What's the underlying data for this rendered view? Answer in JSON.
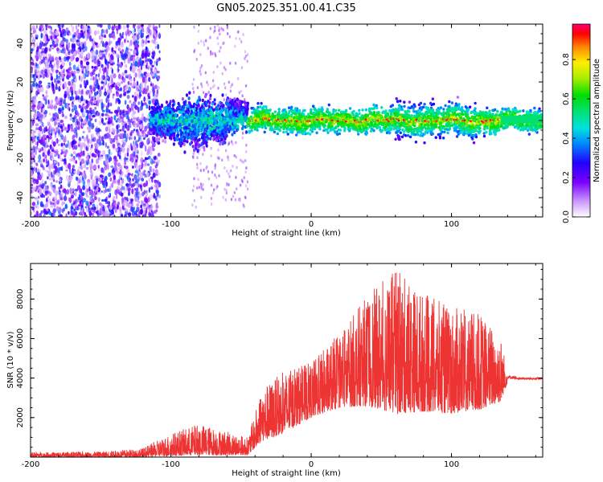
{
  "title": "GN05.2025.351.00.41.C35",
  "chart_data": [
    {
      "type": "heatmap",
      "name": "spectrogram",
      "xlabel": "Height of straight line (km)",
      "ylabel": "Frequency (Hz)",
      "xlim": [
        -200,
        165
      ],
      "ylim": [
        -50,
        50
      ],
      "xticks": [
        -200,
        -100,
        0,
        100
      ],
      "yticks": [
        -40,
        -20,
        0,
        20,
        40
      ],
      "colorbar": {
        "label": "Normalized spectral amplitude",
        "range": [
          0,
          1
        ],
        "ticks": [
          0.0,
          0.2,
          0.4,
          0.6,
          0.8
        ],
        "tick_labels": [
          "0.0",
          "0.2",
          "0.4",
          "0.6",
          "0.8"
        ]
      },
      "regions": [
        {
          "from": -200,
          "to": -108,
          "description": "broadband noise",
          "amplitude": 0.15
        },
        {
          "from": -115,
          "to": -45,
          "center_hz": 0,
          "width_hz": 12,
          "amplitude": 0.35
        },
        {
          "from": -45,
          "to": 135,
          "center_hz": 0,
          "width_hz": 6,
          "amplitude": 0.95
        },
        {
          "from": 135,
          "to": 165,
          "center_hz": 1,
          "width_hz": 5,
          "amplitude": 0.5
        }
      ]
    },
    {
      "type": "line",
      "name": "snr",
      "xlabel": "Height of straight line (km)",
      "ylabel": "SNR (10 * v/v)",
      "xlim": [
        -200,
        165
      ],
      "ylim": [
        0,
        9800
      ],
      "xticks": [
        -200,
        -100,
        0,
        100
      ],
      "yticks": [
        2000,
        4000,
        6000,
        8000
      ],
      "color": "#ee3333",
      "series": [
        {
          "name": "SNR envelope",
          "x": [
            -200,
            -150,
            -120,
            -100,
            -80,
            -60,
            -45,
            -35,
            -20,
            0,
            20,
            40,
            60,
            80,
            100,
            120,
            135,
            140,
            150,
            165
          ],
          "low": [
            0,
            0,
            0,
            50,
            100,
            100,
            100,
            800,
            1200,
            2000,
            2500,
            2600,
            2200,
            2300,
            2200,
            2400,
            2800,
            3800,
            3850,
            3850
          ],
          "high": [
            250,
            280,
            450,
            1200,
            1700,
            1300,
            1000,
            3500,
            4300,
            4800,
            6300,
            8200,
            9500,
            8300,
            7600,
            7300,
            6200,
            4300,
            4100,
            4100
          ]
        }
      ]
    }
  ]
}
